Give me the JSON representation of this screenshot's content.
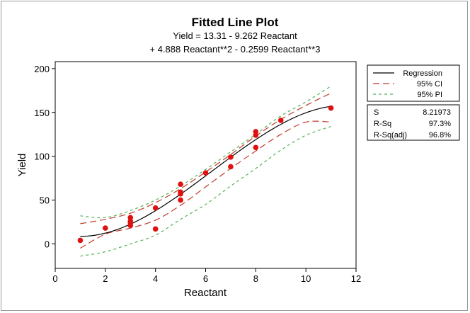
{
  "chart_data": {
    "type": "line",
    "title": "Fitted Line Plot",
    "subtitle_lines": [
      "Yield  =  13.31 - 9.262 Reactant",
      "+ 4.888 Reactant**2 - 0.2599 Reactant**3"
    ],
    "xlabel": "Reactant",
    "ylabel": "Yield",
    "xlim": [
      0,
      12
    ],
    "ylim": [
      -28,
      208
    ],
    "x_ticks": [
      0,
      2,
      4,
      6,
      8,
      10,
      12
    ],
    "y_ticks": [
      0,
      50,
      100,
      150,
      200
    ],
    "grid": false,
    "legend_position": "right",
    "model": {
      "b0": 13.31,
      "b1": -9.262,
      "b2": 4.888,
      "b3": -0.2599,
      "x_range": [
        1,
        11
      ]
    },
    "series": [
      {
        "name": "Regression",
        "color": "#000000",
        "style": "solid"
      },
      {
        "name": "95% CI",
        "color": "#c0392b",
        "style": "dashed"
      },
      {
        "name": "95% PI",
        "color": "#55b055",
        "style": "dashed"
      }
    ],
    "ci_band": {
      "x": [
        1,
        2,
        3,
        4,
        5,
        6,
        7,
        8,
        9,
        10,
        11
      ],
      "upper": [
        23,
        28,
        35,
        47,
        63,
        82,
        102,
        123,
        142,
        158,
        172
      ],
      "lower": [
        -5,
        11,
        18,
        27,
        44,
        65,
        86,
        106,
        125,
        139,
        139
      ]
    },
    "pi_band": {
      "x": [
        1,
        2,
        3,
        4,
        5,
        6,
        7,
        8,
        9,
        10,
        11
      ],
      "upper": [
        32,
        30,
        38,
        50,
        66,
        85,
        105,
        125,
        146,
        162,
        180
      ],
      "lower": [
        -14,
        -9,
        0,
        10,
        28,
        45,
        66,
        86,
        107,
        124,
        134
      ]
    },
    "points": {
      "x": [
        1,
        2,
        3,
        3,
        3,
        3,
        4,
        4,
        5,
        5,
        5,
        5,
        6,
        7,
        7,
        8,
        8,
        8,
        9,
        11
      ],
      "y": [
        4,
        18,
        30,
        26,
        24,
        21,
        41,
        17,
        68,
        57,
        59,
        50,
        81,
        99,
        88,
        128,
        124,
        110,
        141,
        155
      ],
      "color": "#e01010"
    },
    "stats": [
      {
        "label": "S",
        "value": "8.21973"
      },
      {
        "label": "R-Sq",
        "value": "97.3%"
      },
      {
        "label": "R-Sq(adj)",
        "value": "96.8%"
      }
    ]
  }
}
